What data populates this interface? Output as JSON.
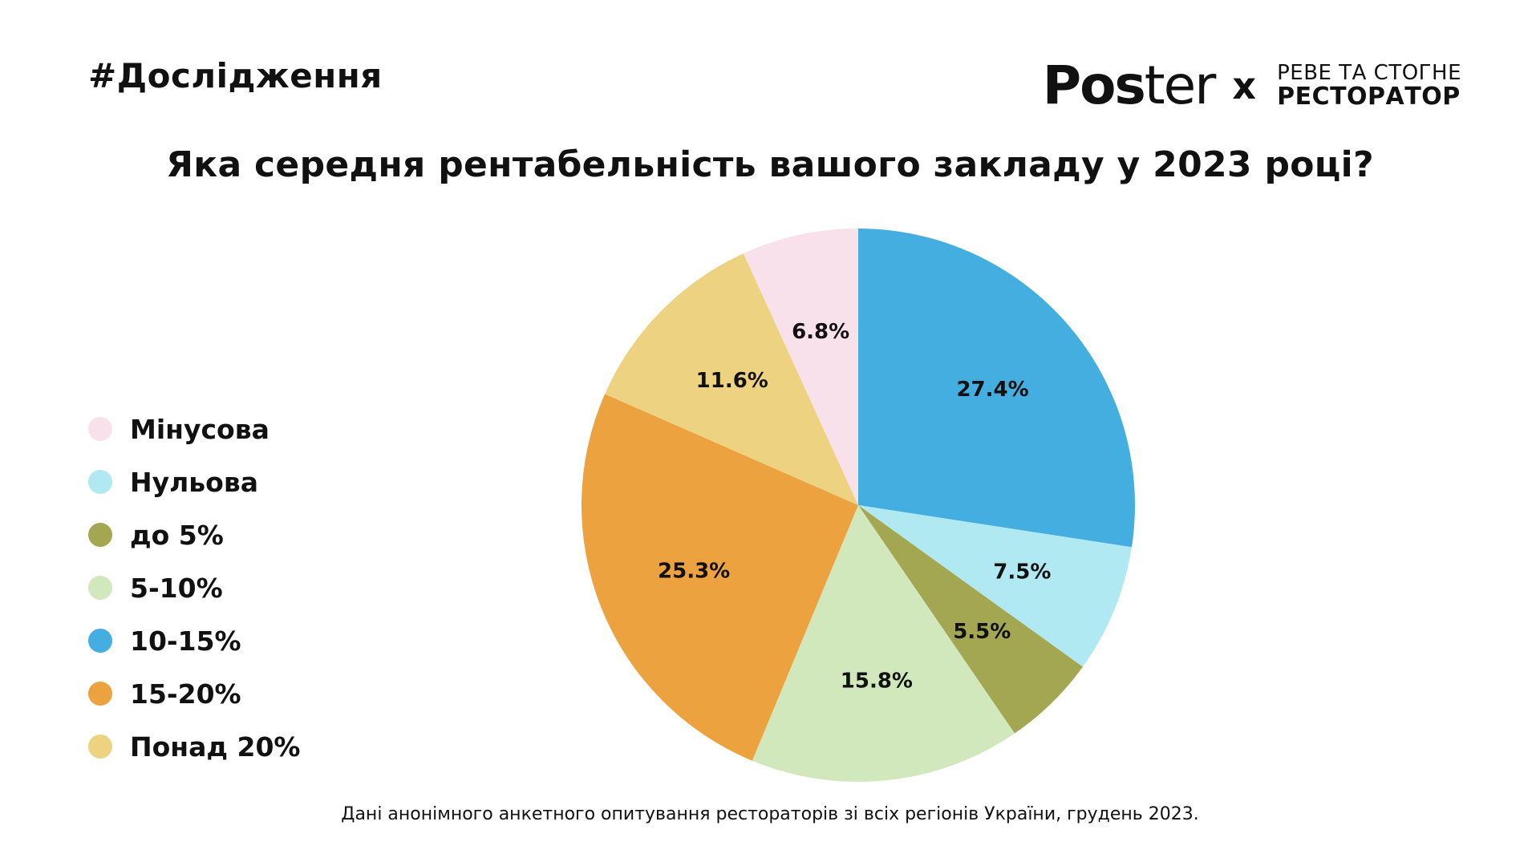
{
  "header": {
    "hashtag": "#Дослідження",
    "logo_poster_bold": "Pos",
    "logo_poster_light": "ter",
    "logo_x": "x",
    "logo_partner_top": "РЕВЕ ТА СТОГНЕ",
    "logo_partner_bottom": "РЕСТОРАТОР"
  },
  "footnote": "Дані анонімного анкетного опитування рестораторів зі всіх регіонів України, грудень 2023.",
  "chart_data": {
    "type": "pie",
    "title": "Яка середня рентабельність вашого закладу у 2023 році?",
    "legend_position": "left",
    "start": "top",
    "direction": "clockwise",
    "categories": [
      "Мінусова",
      "Нульова",
      "до 5%",
      "5-10%",
      "10-15%",
      "15-20%",
      "Понад 20%"
    ],
    "colors": [
      "#F8E1EA",
      "#B1E9F2",
      "#A4A752",
      "#D1E8BD",
      "#45AEE1",
      "#EDA240",
      "#EDD381"
    ],
    "slice_order": [
      "10-15%",
      "Нульова",
      "до 5%",
      "5-10%",
      "15-20%",
      "Понад 20%",
      "Мінусова"
    ],
    "slices": [
      {
        "category": "10-15%",
        "value": 27.4,
        "label": "27.4%"
      },
      {
        "category": "Нульова",
        "value": 7.5,
        "label": "7.5%"
      },
      {
        "category": "до 5%",
        "value": 5.5,
        "label": "5.5%"
      },
      {
        "category": "5-10%",
        "value": 15.8,
        "label": "15.8%"
      },
      {
        "category": "15-20%",
        "value": 25.3,
        "label": "25.3%"
      },
      {
        "category": "Понад 20%",
        "value": 11.6,
        "label": "11.6%"
      },
      {
        "category": "Мінусова",
        "value": 6.8,
        "label": "6.8%"
      }
    ]
  }
}
